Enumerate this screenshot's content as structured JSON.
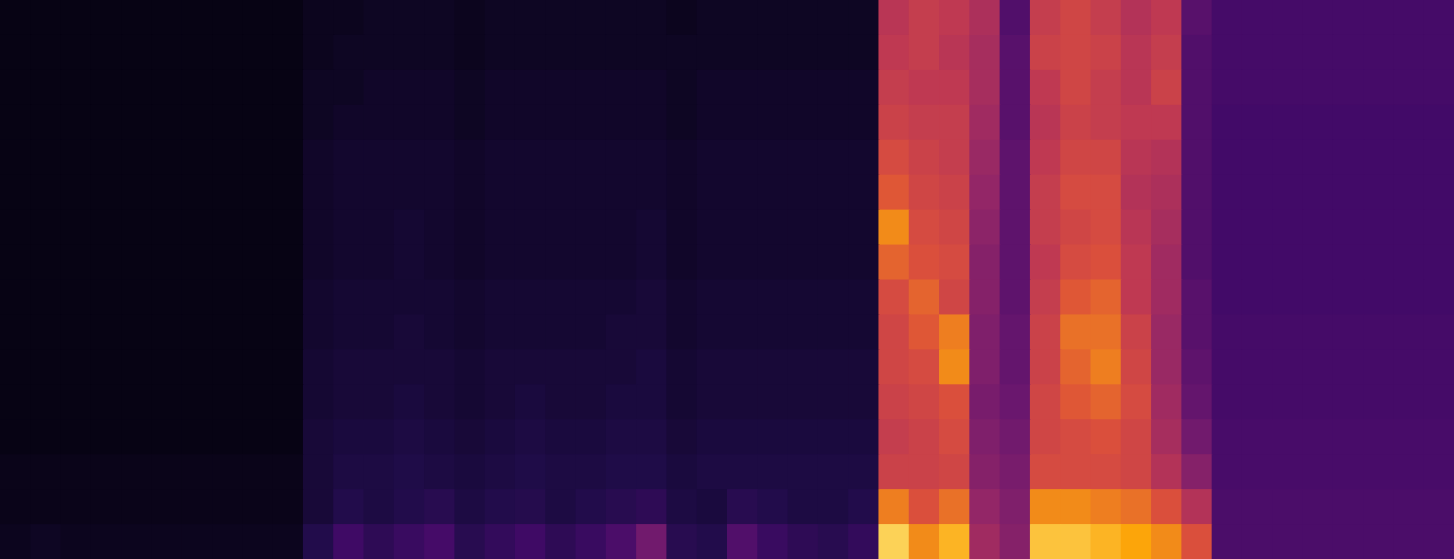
{
  "chart_data": {
    "type": "heatmap",
    "tick_labels": false,
    "color_range": [
      0,
      100
    ],
    "cells": [
      [
        3,
        3,
        3,
        3,
        3,
        3,
        3,
        3,
        3,
        3,
        5,
        5,
        6,
        6,
        6,
        5,
        6,
        6,
        6,
        6,
        6,
        6,
        5,
        6,
        6,
        6,
        6,
        6,
        6,
        62,
        66,
        64,
        58,
        30,
        66,
        70,
        66,
        60,
        64,
        32,
        26,
        26,
        26,
        26,
        26,
        26,
        26,
        26
      ],
      [
        3,
        3,
        3,
        3,
        3,
        3,
        3,
        3,
        3,
        3,
        5,
        6,
        6,
        6,
        6,
        5,
        6,
        6,
        6,
        6,
        6,
        6,
        6,
        6,
        6,
        6,
        6,
        6,
        6,
        64,
        66,
        62,
        56,
        32,
        68,
        70,
        68,
        62,
        66,
        30,
        26,
        26,
        26,
        26,
        26,
        26,
        26,
        26
      ],
      [
        3,
        3,
        3,
        3,
        3,
        3,
        3,
        3,
        3,
        3,
        6,
        6,
        7,
        7,
        7,
        6,
        7,
        7,
        7,
        7,
        7,
        7,
        6,
        7,
        7,
        7,
        7,
        7,
        7,
        66,
        64,
        64,
        56,
        32,
        64,
        70,
        66,
        62,
        68,
        30,
        26,
        26,
        26,
        26,
        26,
        26,
        26,
        26
      ],
      [
        3,
        3,
        3,
        3,
        3,
        3,
        3,
        3,
        3,
        3,
        6,
        7,
        7,
        7,
        7,
        6,
        7,
        7,
        7,
        7,
        7,
        7,
        6,
        7,
        7,
        7,
        7,
        7,
        7,
        68,
        66,
        66,
        54,
        32,
        62,
        68,
        66,
        64,
        64,
        30,
        25,
        25,
        25,
        25,
        25,
        25,
        25,
        25
      ],
      [
        3,
        3,
        3,
        3,
        3,
        3,
        3,
        3,
        3,
        3,
        7,
        8,
        8,
        8,
        8,
        7,
        8,
        8,
        8,
        8,
        8,
        8,
        7,
        8,
        8,
        8,
        8,
        8,
        8,
        72,
        68,
        66,
        52,
        34,
        64,
        70,
        70,
        62,
        60,
        30,
        25,
        25,
        25,
        25,
        25,
        25,
        25,
        25
      ],
      [
        3,
        3,
        3,
        3,
        3,
        3,
        3,
        3,
        3,
        3,
        7,
        8,
        8,
        8,
        8,
        7,
        8,
        8,
        8,
        8,
        8,
        8,
        7,
        8,
        8,
        8,
        8,
        8,
        8,
        76,
        70,
        68,
        50,
        34,
        66,
        72,
        72,
        60,
        58,
        30,
        25,
        25,
        25,
        25,
        25,
        25,
        25,
        25
      ],
      [
        3,
        3,
        3,
        3,
        3,
        3,
        3,
        3,
        3,
        3,
        7,
        8,
        8,
        9,
        8,
        7,
        8,
        8,
        8,
        8,
        8,
        9,
        7,
        8,
        8,
        8,
        8,
        8,
        8,
        84,
        72,
        70,
        48,
        34,
        66,
        70,
        72,
        62,
        56,
        30,
        25,
        25,
        25,
        25,
        25,
        25,
        25,
        25
      ],
      [
        3,
        3,
        3,
        3,
        3,
        3,
        3,
        3,
        3,
        3,
        7,
        8,
        8,
        9,
        8,
        7,
        8,
        8,
        8,
        8,
        8,
        9,
        7,
        8,
        8,
        8,
        8,
        8,
        8,
        78,
        74,
        72,
        46,
        34,
        64,
        72,
        74,
        64,
        54,
        30,
        25,
        25,
        25,
        25,
        25,
        25,
        25,
        25
      ],
      [
        3,
        3,
        3,
        3,
        3,
        3,
        3,
        3,
        3,
        3,
        8,
        9,
        9,
        9,
        9,
        8,
        9,
        9,
        9,
        9,
        9,
        10,
        8,
        9,
        9,
        9,
        9,
        9,
        9,
        72,
        78,
        70,
        46,
        34,
        66,
        76,
        78,
        64,
        54,
        32,
        25,
        25,
        25,
        25,
        25,
        25,
        25,
        25
      ],
      [
        3,
        3,
        3,
        3,
        3,
        3,
        3,
        3,
        3,
        3,
        8,
        9,
        9,
        10,
        9,
        8,
        9,
        9,
        9,
        9,
        10,
        10,
        8,
        9,
        9,
        9,
        9,
        9,
        9,
        70,
        76,
        82,
        44,
        36,
        68,
        80,
        80,
        68,
        52,
        32,
        26,
        26,
        26,
        26,
        26,
        26,
        26,
        26
      ],
      [
        3,
        3,
        3,
        3,
        3,
        3,
        3,
        3,
        3,
        3,
        9,
        10,
        10,
        10,
        10,
        9,
        10,
        10,
        10,
        10,
        10,
        11,
        9,
        10,
        10,
        10,
        10,
        10,
        10,
        70,
        72,
        84,
        44,
        36,
        68,
        78,
        82,
        70,
        52,
        34,
        26,
        26,
        26,
        26,
        26,
        26,
        26,
        26
      ],
      [
        3,
        3,
        3,
        3,
        3,
        3,
        3,
        3,
        3,
        3,
        9,
        10,
        10,
        11,
        10,
        9,
        10,
        11,
        10,
        10,
        11,
        11,
        9,
        10,
        10,
        10,
        10,
        10,
        10,
        68,
        70,
        74,
        42,
        38,
        70,
        76,
        78,
        72,
        54,
        36,
        26,
        26,
        26,
        26,
        26,
        26,
        26,
        26
      ],
      [
        3,
        3,
        3,
        3,
        3,
        3,
        3,
        3,
        3,
        3,
        10,
        11,
        11,
        12,
        11,
        10,
        11,
        12,
        11,
        11,
        12,
        12,
        10,
        11,
        11,
        11,
        11,
        11,
        11,
        66,
        68,
        72,
        44,
        40,
        70,
        72,
        74,
        70,
        56,
        40,
        27,
        27,
        27,
        27,
        27,
        27,
        27,
        27
      ],
      [
        4,
        4,
        4,
        4,
        4,
        4,
        4,
        4,
        4,
        4,
        10,
        12,
        12,
        13,
        12,
        11,
        12,
        13,
        12,
        12,
        13,
        13,
        11,
        12,
        12,
        12,
        12,
        12,
        12,
        68,
        68,
        70,
        46,
        42,
        72,
        72,
        72,
        70,
        60,
        46,
        27,
        27,
        27,
        27,
        27,
        27,
        27,
        27
      ],
      [
        4,
        4,
        4,
        4,
        4,
        4,
        4,
        4,
        4,
        4,
        10,
        14,
        12,
        14,
        16,
        12,
        14,
        15,
        12,
        14,
        16,
        18,
        12,
        11,
        16,
        14,
        12,
        12,
        14,
        82,
        74,
        80,
        50,
        44,
        84,
        84,
        82,
        80,
        74,
        60,
        28,
        28,
        28,
        28,
        28,
        28,
        28,
        28
      ],
      [
        5,
        6,
        5,
        5,
        5,
        5,
        5,
        5,
        5,
        5,
        14,
        24,
        18,
        22,
        26,
        16,
        20,
        24,
        18,
        22,
        28,
        40,
        16,
        14,
        30,
        22,
        18,
        16,
        20,
        94,
        84,
        90,
        54,
        46,
        92,
        92,
        90,
        88,
        84,
        74,
        28,
        28,
        28,
        28,
        28,
        28,
        28,
        28
      ]
    ]
  }
}
